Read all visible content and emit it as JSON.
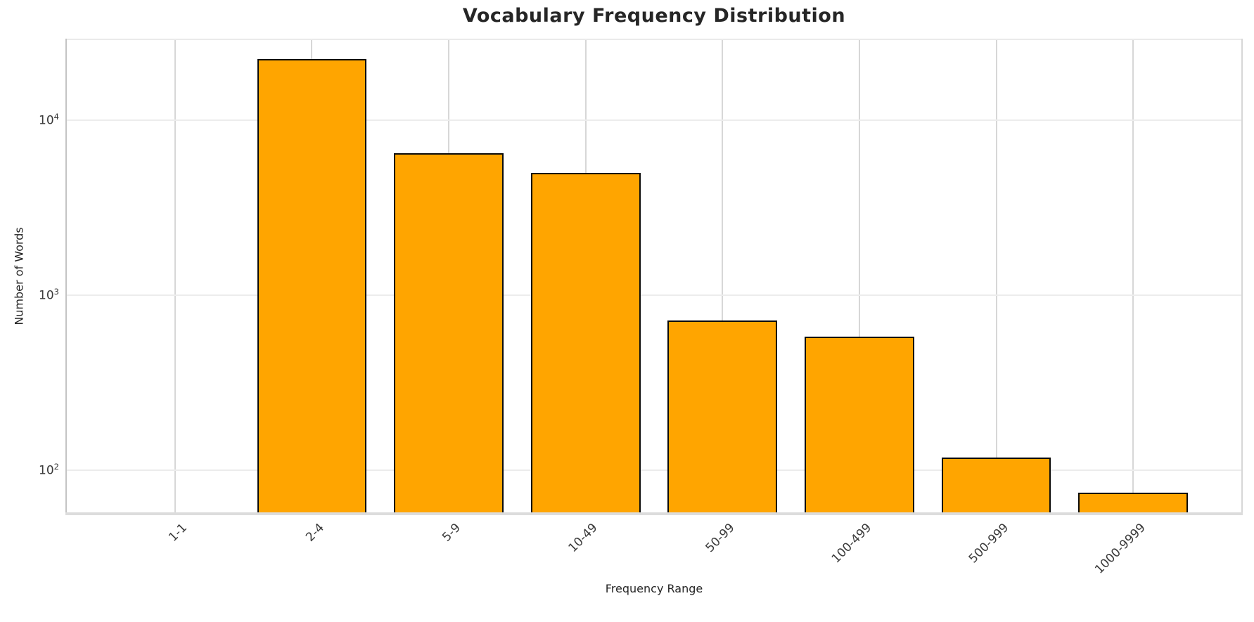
{
  "chart_data": {
    "type": "bar",
    "title": "Vocabulary Frequency Distribution",
    "xlabel": "Frequency Range",
    "ylabel": "Number of Words",
    "categories": [
      "1-1",
      "2-4",
      "5-9",
      "10-49",
      "50-99",
      "100-499",
      "500-999",
      "1000-9999"
    ],
    "values": [
      0,
      22300,
      6500,
      5000,
      720,
      580,
      118,
      75
    ],
    "yscale": "log",
    "y_tick_exponents": [
      2,
      3,
      4
    ],
    "ylim": [
      56.6,
      29200
    ],
    "xlim": [
      -0.79,
      7.79
    ],
    "bar_rel_width": 0.8,
    "grid": true,
    "legend": "none",
    "colors": {
      "bar_fill": "#FFA500",
      "bar_edge": "#0b0b0b",
      "grid_vertical": "#d7d7d7",
      "grid_horizontal": "#ececec",
      "title_text": "#262626",
      "tick_text": "#3b3b3b"
    }
  }
}
